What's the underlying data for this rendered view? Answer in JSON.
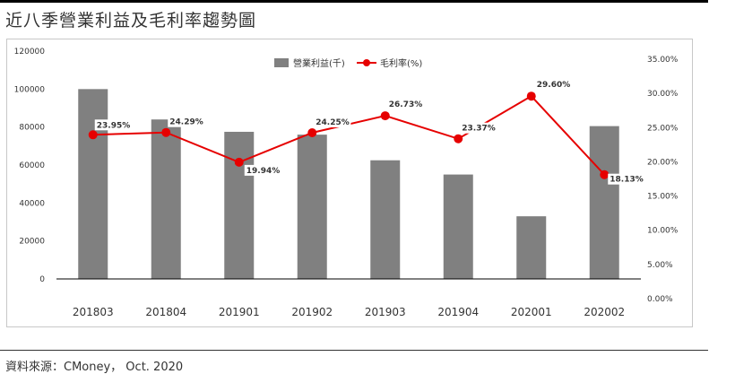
{
  "page": {
    "title": "近八季營業利益及毛利率趨勢圖",
    "source": "資料來源：CMoney， Oct. 2020"
  },
  "colors": {
    "bar": "#808080",
    "line": "#e60000",
    "text": "#333333",
    "grid": "#000000"
  },
  "chart_data": {
    "type": "bar",
    "categories": [
      "201803",
      "201804",
      "201901",
      "201902",
      "201903",
      "201904",
      "202001",
      "202002"
    ],
    "series": [
      {
        "name": "營業利益(千)",
        "type": "bar",
        "axis": "left",
        "values": [
          100000,
          84000,
          77500,
          76000,
          62500,
          55000,
          33000,
          80500
        ]
      },
      {
        "name": "毛利率(%)",
        "type": "line",
        "axis": "right",
        "values": [
          23.95,
          24.29,
          19.94,
          24.25,
          26.73,
          23.37,
          29.6,
          18.13
        ],
        "labels": [
          "23.95%",
          "24.29%",
          "19.94%",
          "24.25%",
          "26.73%",
          "23.37%",
          "29.60%",
          "18.13%"
        ]
      }
    ],
    "y_left": {
      "min": 0,
      "max": 120000,
      "ticks": [
        "0",
        "20000",
        "40000",
        "60000",
        "80000",
        "100000",
        "120000"
      ]
    },
    "y_right": {
      "min": 0,
      "max": 35,
      "ticks": [
        "0.00%",
        "5.00%",
        "10.00%",
        "15.00%",
        "20.00%",
        "25.00%",
        "30.00%",
        "35.00%"
      ]
    },
    "legend_position": "top-center",
    "grid": false
  }
}
